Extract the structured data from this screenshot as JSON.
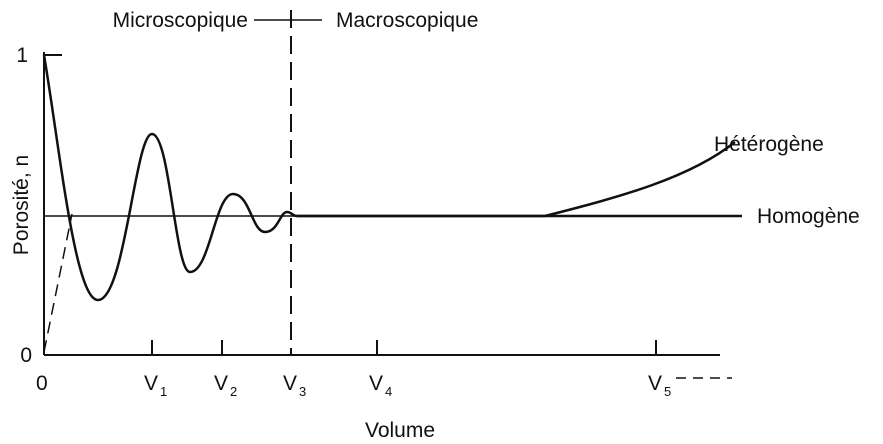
{
  "header": {
    "left": "Microscopique",
    "right": "Macroscopique"
  },
  "y_axis": {
    "label": "Porosité, n",
    "ticks": [
      "1",
      "0"
    ]
  },
  "x_axis": {
    "label": "Volume",
    "ticks": [
      {
        "base": "0",
        "sub": ""
      },
      {
        "base": "V",
        "sub": "1"
      },
      {
        "base": "V",
        "sub": "2"
      },
      {
        "base": "V",
        "sub": "3"
      },
      {
        "base": "V",
        "sub": "4"
      },
      {
        "base": "V",
        "sub": "5"
      }
    ]
  },
  "curves": {
    "upper": "Hétérogène",
    "flat": "Homogène"
  }
}
